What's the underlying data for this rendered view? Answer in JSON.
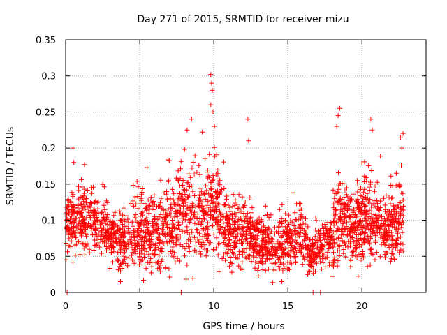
{
  "chart_data": {
    "type": "scatter",
    "title": "Day 271 of 2015, SRMTID for receiver mizu",
    "xlabel": "GPS time / hours",
    "ylabel": "SRMTID / TECUs",
    "xlim": [
      0,
      24.33
    ],
    "ylim": [
      0,
      0.35
    ],
    "xticks": [
      0,
      5,
      10,
      15,
      20
    ],
    "yticks": [
      0,
      0.05,
      0.1,
      0.15,
      0.2,
      0.25,
      0.3,
      0.35
    ],
    "xtick_labels": [
      "0",
      "5",
      "10",
      "15",
      "20"
    ],
    "ytick_labels": [
      "0",
      "0.05",
      "0.1",
      "0.15",
      "0.2",
      "0.25",
      "0.3",
      "0.35"
    ],
    "grid": true,
    "marker": "+",
    "color": "#ff0000",
    "series": [
      {
        "name": "SRMTID",
        "description_of_envelope": "Dense scatter; approximate central tendency per time window",
        "envelope": [
          {
            "x": 0.0,
            "center": 0.095,
            "spread": 0.035
          },
          {
            "x": 1.0,
            "center": 0.1,
            "spread": 0.03
          },
          {
            "x": 2.0,
            "center": 0.095,
            "spread": 0.028
          },
          {
            "x": 3.0,
            "center": 0.075,
            "spread": 0.025
          },
          {
            "x": 4.0,
            "center": 0.075,
            "spread": 0.03
          },
          {
            "x": 5.0,
            "center": 0.085,
            "spread": 0.035
          },
          {
            "x": 6.0,
            "center": 0.08,
            "spread": 0.035
          },
          {
            "x": 7.0,
            "center": 0.09,
            "spread": 0.04
          },
          {
            "x": 8.0,
            "center": 0.11,
            "spread": 0.045
          },
          {
            "x": 9.0,
            "center": 0.1,
            "spread": 0.045
          },
          {
            "x": 10.0,
            "center": 0.12,
            "spread": 0.05
          },
          {
            "x": 11.0,
            "center": 0.085,
            "spread": 0.035
          },
          {
            "x": 12.0,
            "center": 0.08,
            "spread": 0.03
          },
          {
            "x": 13.0,
            "center": 0.07,
            "spread": 0.028
          },
          {
            "x": 14.0,
            "center": 0.065,
            "spread": 0.025
          },
          {
            "x": 15.0,
            "center": 0.07,
            "spread": 0.03
          },
          {
            "x": 16.0,
            "center": 0.085,
            "spread": 0.03
          },
          {
            "x": 16.5,
            "center": 0.05,
            "spread": 0.015
          },
          {
            "x": 17.5,
            "center": 0.07,
            "spread": 0.025
          },
          {
            "x": 18.5,
            "center": 0.1,
            "spread": 0.045
          },
          {
            "x": 19.5,
            "center": 0.085,
            "spread": 0.035
          },
          {
            "x": 20.5,
            "center": 0.11,
            "spread": 0.045
          },
          {
            "x": 21.5,
            "center": 0.085,
            "spread": 0.03
          },
          {
            "x": 22.5,
            "center": 0.1,
            "spread": 0.045
          }
        ],
        "notable_points": [
          {
            "x": 0.1,
            "y": 0.0
          },
          {
            "x": 7.8,
            "y": 0.0
          },
          {
            "x": 16.7,
            "y": 0.0
          },
          {
            "x": 17.2,
            "y": 0.0
          },
          {
            "x": 0.5,
            "y": 0.2
          },
          {
            "x": 0.55,
            "y": 0.18
          },
          {
            "x": 8.5,
            "y": 0.24
          },
          {
            "x": 8.2,
            "y": 0.225
          },
          {
            "x": 9.8,
            "y": 0.302
          },
          {
            "x": 9.85,
            "y": 0.29
          },
          {
            "x": 9.9,
            "y": 0.28
          },
          {
            "x": 9.8,
            "y": 0.26
          },
          {
            "x": 9.95,
            "y": 0.25
          },
          {
            "x": 10.05,
            "y": 0.23
          },
          {
            "x": 12.3,
            "y": 0.24
          },
          {
            "x": 12.35,
            "y": 0.21
          },
          {
            "x": 18.5,
            "y": 0.255
          },
          {
            "x": 18.4,
            "y": 0.245
          },
          {
            "x": 18.3,
            "y": 0.23
          },
          {
            "x": 20.6,
            "y": 0.24
          },
          {
            "x": 20.7,
            "y": 0.225
          },
          {
            "x": 22.6,
            "y": 0.215
          },
          {
            "x": 22.7,
            "y": 0.2
          },
          {
            "x": 3.7,
            "y": 0.015
          },
          {
            "x": 14.6,
            "y": 0.015
          }
        ]
      }
    ]
  }
}
